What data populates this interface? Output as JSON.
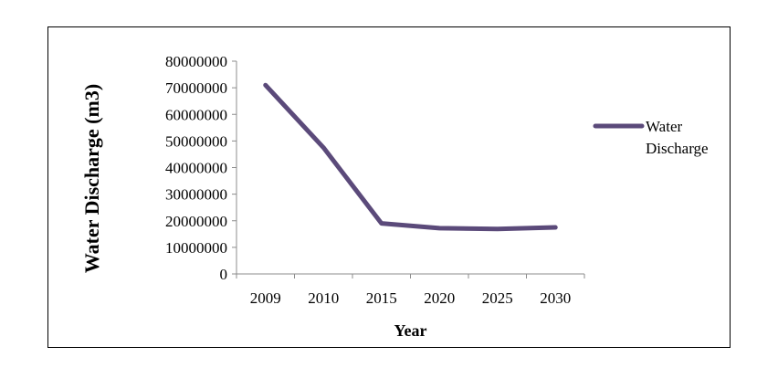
{
  "chart_data": {
    "type": "line",
    "categories": [
      "2009",
      "2010",
      "2015",
      "2020",
      "2025",
      "2030"
    ],
    "series": [
      {
        "name": "Water Discharge",
        "values": [
          71000000,
          47500000,
          19000000,
          17200000,
          16900000,
          17500000
        ],
        "color": "#5b4a7a"
      }
    ],
    "title": "",
    "xlabel": "Year",
    "ylabel": "Water Discharge (m3)",
    "ylim": [
      0,
      80000000
    ],
    "yticks": [
      0,
      10000000,
      20000000,
      30000000,
      40000000,
      50000000,
      60000000,
      70000000,
      80000000
    ],
    "ytick_labels": [
      "0",
      "10000000",
      "20000000",
      "30000000",
      "40000000",
      "50000000",
      "60000000",
      "70000000",
      "80000000"
    ],
    "grid": false,
    "legend": {
      "placement": "right",
      "lines": [
        "Water",
        "Discharge"
      ]
    }
  }
}
